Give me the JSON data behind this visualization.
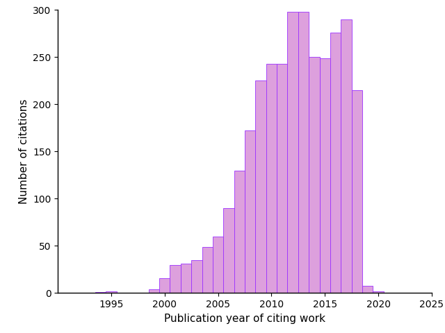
{
  "years": [
    1991,
    1992,
    1993,
    1994,
    1995,
    1996,
    1997,
    1998,
    1999,
    2000,
    2001,
    2002,
    2003,
    2004,
    2005,
    2006,
    2007,
    2008,
    2009,
    2010,
    2011,
    2012,
    2013,
    2014,
    2015,
    2016,
    2017,
    2018,
    2019,
    2020,
    2021
  ],
  "values": [
    0,
    0,
    0,
    1,
    2,
    0,
    0,
    0,
    4,
    16,
    30,
    31,
    35,
    49,
    60,
    90,
    130,
    172,
    225,
    243,
    243,
    298,
    298,
    250,
    249,
    276,
    290,
    215,
    8,
    2,
    0
  ],
  "bar_color": "#DDA0DD",
  "bar_edge_color": "#9B30FF",
  "xlabel": "Publication year of citing work",
  "ylabel": "Number of citations",
  "xlim": [
    1990,
    2025
  ],
  "ylim": [
    0,
    300
  ],
  "yticks": [
    0,
    50,
    100,
    150,
    200,
    250,
    300
  ],
  "xticks": [
    1995,
    2000,
    2005,
    2010,
    2015,
    2020,
    2025
  ],
  "bar_width": 1.0
}
